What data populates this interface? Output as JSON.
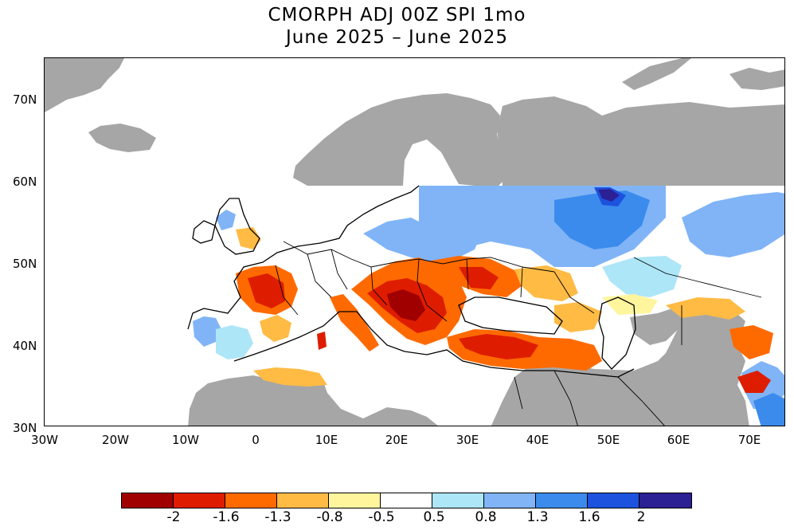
{
  "title": {
    "line1": "CMORPH ADJ 00Z SPI 1mo",
    "line2": "June 2025 – June 2025"
  },
  "map": {
    "region": "Europe",
    "lat_labels": [
      "70N",
      "60N",
      "50N",
      "40N",
      "30N"
    ],
    "lon_labels": [
      "30W",
      "20W",
      "10W",
      "0",
      "10E",
      "20E",
      "30E",
      "40E",
      "50E",
      "60E",
      "70E"
    ],
    "no_data_color": "#a6a6a6",
    "ocean_color": "#ffffff",
    "zones": [
      {
        "name": "france-dry",
        "spi": -2.0
      },
      {
        "name": "balkans-dry",
        "spi": -2.0
      },
      {
        "name": "turkey-dry",
        "spi": -1.8
      },
      {
        "name": "ukraine-dry",
        "spi": -1.6
      },
      {
        "name": "iberia-wet",
        "spi": 1.0
      },
      {
        "name": "baltic-poland-wet",
        "spi": 1.2
      },
      {
        "name": "russia-wet",
        "spi": 1.5
      },
      {
        "name": "ural-wet",
        "spi": 1.0
      },
      {
        "name": "north-africa-dry",
        "spi": -1.0
      },
      {
        "name": "iran-dry",
        "spi": -1.3
      }
    ]
  },
  "colorbar": {
    "labels": [
      "-2",
      "-1.6",
      "-1.3",
      "-0.8",
      "-0.5",
      "0.5",
      "0.8",
      "1.3",
      "1.6",
      "2"
    ],
    "colors": [
      "#a10000",
      "#de1d00",
      "#ff6a00",
      "#ffbb44",
      "#fff59d",
      "#ffffff",
      "#ade6f7",
      "#80b4f7",
      "#3b8bed",
      "#1c52de",
      "#2b2094"
    ]
  }
}
